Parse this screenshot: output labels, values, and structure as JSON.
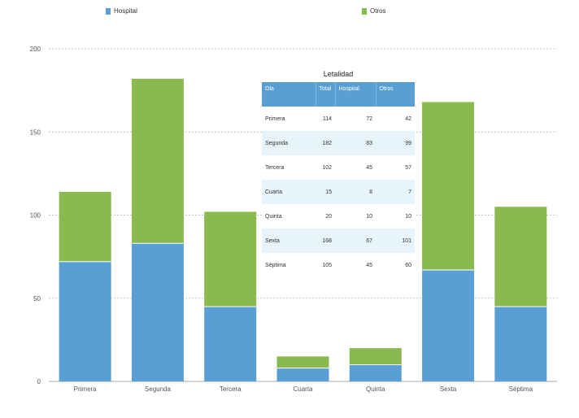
{
  "legend": {
    "hospital": "Hospital",
    "otros": "Otros"
  },
  "colors": {
    "hospital": "#5a9fd4",
    "otros": "#8aba4f"
  },
  "table": {
    "title": "Letalidad",
    "headers": [
      "Ola",
      "Total",
      "Hospital",
      "Otros"
    ],
    "rows": [
      [
        "Primera",
        "114",
        "72",
        "42"
      ],
      [
        "Segunda",
        "182",
        "83",
        "99"
      ],
      [
        "Tercera",
        "102",
        "45",
        "57"
      ],
      [
        "Cuarta",
        "15",
        "8",
        "7"
      ],
      [
        "Quinta",
        "20",
        "10",
        "10"
      ],
      [
        "Sexta",
        "168",
        "67",
        "101"
      ],
      [
        "Séptima",
        "105",
        "45",
        "60"
      ]
    ]
  },
  "chart_data": {
    "type": "bar",
    "stacked": true,
    "categories": [
      "Primera",
      "Segunda",
      "Tercera",
      "Cuarta",
      "Quinta",
      "Sexta",
      "Séptima"
    ],
    "series": [
      {
        "name": "Hospital",
        "values": [
          72,
          83,
          45,
          8,
          10,
          67,
          45
        ]
      },
      {
        "name": "Otros",
        "values": [
          42,
          99,
          57,
          7,
          10,
          101,
          60
        ]
      }
    ],
    "ylim": [
      0,
      200
    ],
    "yticks": [
      0,
      50,
      100,
      150,
      200
    ],
    "grid": true,
    "legend_position": "top"
  }
}
